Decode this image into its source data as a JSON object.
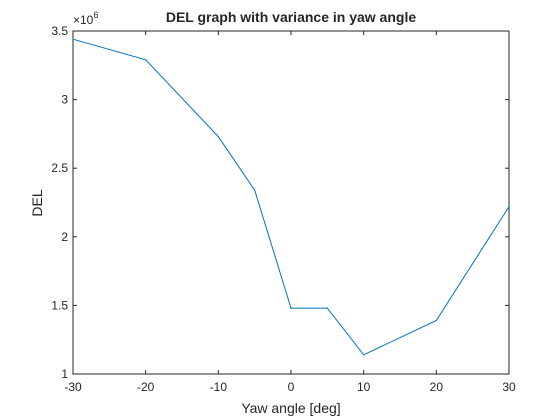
{
  "chart_data": {
    "type": "line",
    "title": "DEL graph with variance in yaw angle",
    "xlabel": "Yaw angle [deg]",
    "ylabel": "DEL",
    "exponent_label": "×10",
    "exponent_power": "6",
    "xlim": [
      -30,
      30
    ],
    "ylim": [
      1,
      3.5
    ],
    "xticks": [
      -30,
      -20,
      -10,
      0,
      10,
      20,
      30
    ],
    "xtick_labels": [
      "-30",
      "-20",
      "-10",
      "0",
      "10",
      "20",
      "30"
    ],
    "yticks": [
      1,
      1.5,
      2,
      2.5,
      3,
      3.5
    ],
    "ytick_labels": [
      "1",
      "1.5",
      "2",
      "2.5",
      "3",
      "3.5"
    ],
    "grid": false,
    "series": [
      {
        "color": "#0072BD",
        "x": [
          -30,
          -20,
          -10,
          -5,
          0,
          5,
          10,
          20,
          30
        ],
        "y": [
          3.44,
          3.29,
          2.73,
          2.34,
          1.48,
          1.48,
          1.14,
          1.39,
          2.22
        ]
      }
    ]
  }
}
